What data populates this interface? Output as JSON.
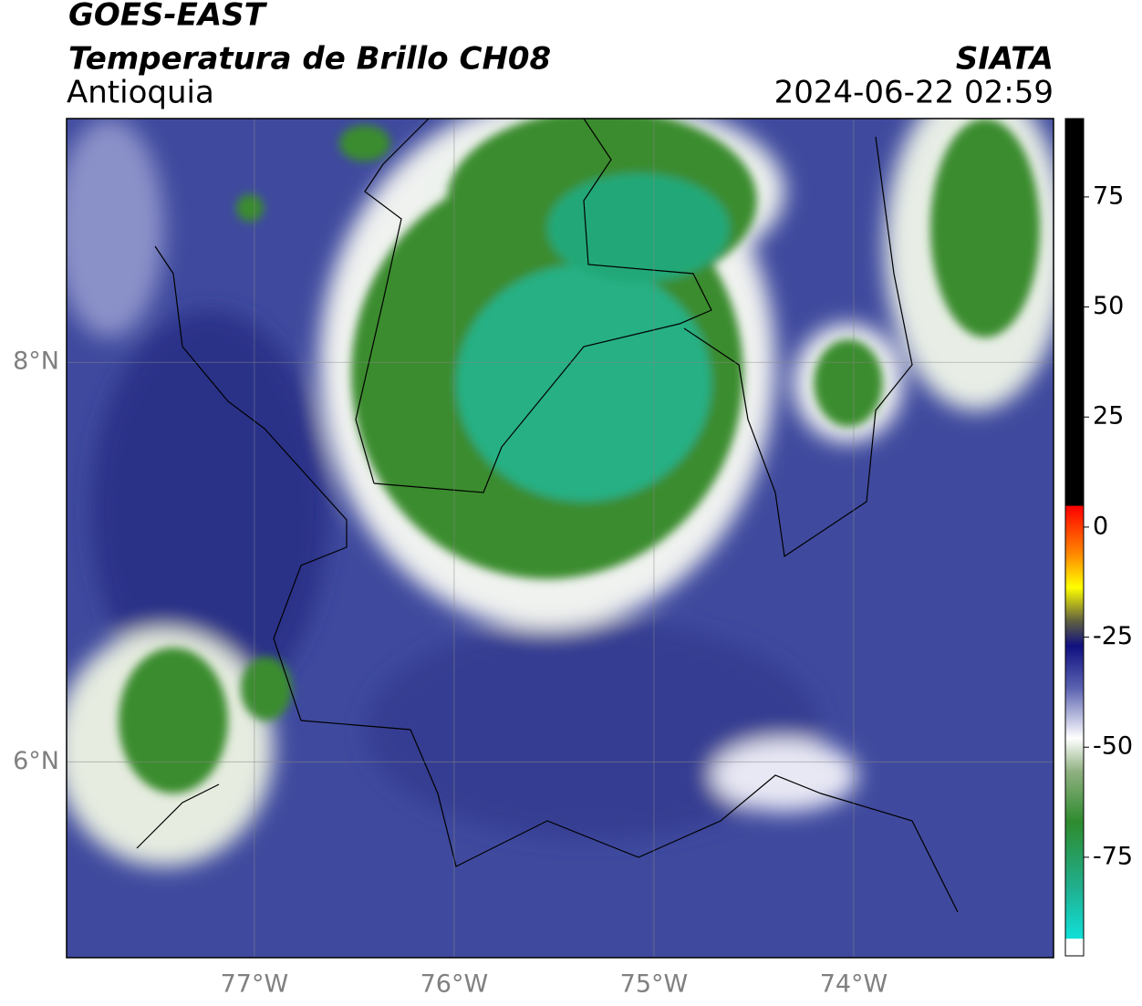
{
  "header": {
    "title": "GOES-EAST",
    "subtitle": "Temperatura de Brillo CH08",
    "region": "Antioquia",
    "source": "SIATA",
    "datetime": "2024-06-22 02:59"
  },
  "map": {
    "xlim": [
      -77.94,
      -73.0
    ],
    "ylim": [
      5.02,
      9.22
    ],
    "xticks": [
      {
        "value": -77,
        "label": "77°W"
      },
      {
        "value": -76,
        "label": "76°W"
      },
      {
        "value": -75,
        "label": "75°W"
      },
      {
        "value": -74,
        "label": "74°W"
      }
    ],
    "yticks": [
      {
        "value": 8,
        "label": "8°N"
      },
      {
        "value": 6,
        "label": "6°N"
      }
    ]
  },
  "colorbar": {
    "range": [
      -97.4,
      92.8
    ],
    "ticks": [
      75,
      50,
      25,
      0,
      -25,
      -50,
      -75
    ]
  }
}
